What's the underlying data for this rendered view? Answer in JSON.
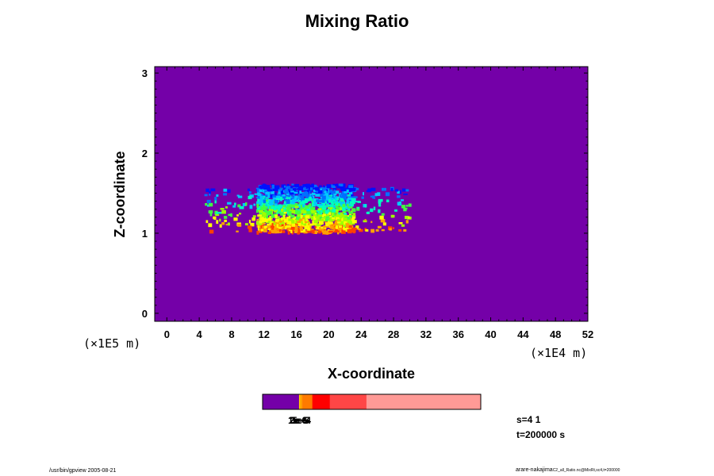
{
  "chart_data": {
    "type": "heatmap",
    "title": "Mixing Ratio",
    "xlabel": "X-coordinate",
    "ylabel": "Z-coordinate",
    "x_unit": "(×1E4 m)",
    "y_unit": "(×1E5 m)",
    "xlim": [
      -1.5,
      52
    ],
    "ylim": [
      -0.1,
      3.08
    ],
    "x_ticks": [
      "0",
      "4",
      "8",
      "12",
      "16",
      "20",
      "24",
      "28",
      "32",
      "36",
      "40",
      "44",
      "48",
      "52"
    ],
    "y_ticks": [
      "0",
      "1",
      "2",
      "3"
    ],
    "background_level": "< 1e-6",
    "background_color": "#7400a8",
    "cloud_extent": {
      "x_min": 4.5,
      "x_max": 30,
      "z_min": 1.0,
      "z_max": 1.6
    },
    "colorbar": {
      "labels": [
        "1e-6",
        "2e-5",
        "3e-5",
        "5e-4"
      ],
      "bands": [
        {
          "color": "#7400a8",
          "frac": 0.167
        },
        {
          "color": "#ffd400",
          "frac": 0.005
        },
        {
          "color": "#ff9d00",
          "frac": 0.01
        },
        {
          "color": "#ff7a00",
          "frac": 0.046
        },
        {
          "color": "#ff0000",
          "frac": 0.08
        },
        {
          "color": "#ff4646",
          "frac": 0.168
        },
        {
          "color": "#ff9a96",
          "frac": 0.524
        }
      ]
    },
    "grid": false
  },
  "info": {
    "s_line": "s=4 1",
    "t_line": "t=200000 s"
  },
  "footer": {
    "left": "/usr/bin/gpview 2005-08-21",
    "right_main": "arare-nakajima",
    "right_small": "C2_all_Ratio.nc@MixRt,sc4,t=200000"
  }
}
